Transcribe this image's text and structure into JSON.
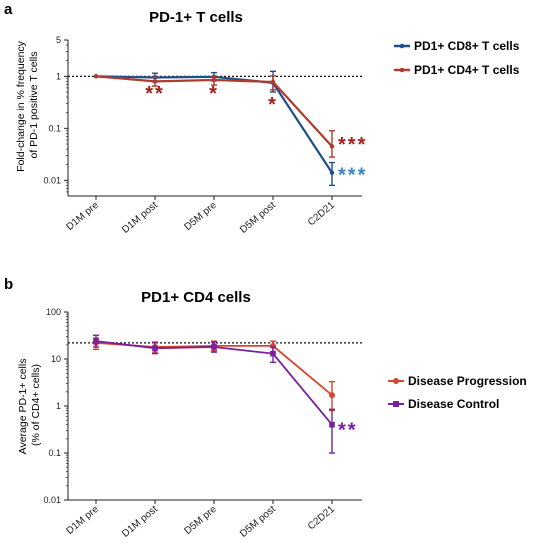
{
  "panels": [
    {
      "letter": "a",
      "chart_data": {
        "type": "line",
        "title": "PD-1+ T cells",
        "ylabel": "Fold-change in % frequency of PD-1 positive T cells",
        "ylabel_lines": [
          "Fold-change in % frequency",
          "of PD-1 positive T cells"
        ],
        "xlabel": "",
        "categories": [
          "D1M pre",
          "D1M post",
          "D5M pre",
          "D5M post",
          "C2D21"
        ],
        "y_scale": "log",
        "ylim": [
          0.005,
          5
        ],
        "y_ticks": [
          0.01,
          0.1,
          1,
          5
        ],
        "y_tick_labels": [
          "0.01",
          "0.1",
          "1",
          "5"
        ],
        "reference_line": 1,
        "legend_position": "right",
        "series": [
          {
            "name": "PD1+ CD8+ T cells",
            "color": "#1f4e8c",
            "values": [
              1,
              0.95,
              0.98,
              0.75,
              0.014
            ],
            "err_low": [
              1,
              0.78,
              0.82,
              0.5,
              0.008
            ],
            "err_high": [
              1,
              1.15,
              1.18,
              1.25,
              0.022
            ]
          },
          {
            "name": "PD1+ CD4+ T cells",
            "color": "#b03a2e",
            "values": [
              1,
              0.8,
              0.85,
              0.78,
              0.045
            ],
            "err_low": [
              1,
              0.65,
              0.68,
              0.55,
              0.028
            ],
            "err_high": [
              1,
              0.97,
              1.0,
              1.02,
              0.09
            ]
          }
        ],
        "annotations": [
          {
            "text": "**",
            "category": "D1M post",
            "y": 0.52,
            "color": "#a31f1f"
          },
          {
            "text": "*",
            "category": "D5M pre",
            "y": 0.52,
            "color": "#a31f1f"
          },
          {
            "text": "*",
            "category": "D5M post",
            "y": 0.32,
            "color": "#a31f1f"
          },
          {
            "text": "***",
            "category": "C2D21",
            "y": 0.055,
            "color": "#a31f1f"
          },
          {
            "text": "***",
            "category": "C2D21",
            "y": 0.014,
            "color": "#3d86c6"
          }
        ]
      }
    },
    {
      "letter": "b",
      "chart_data": {
        "type": "line",
        "title": "PD1+ CD4 cells",
        "ylabel": "Average PD-1+ cells (% of CD4+ cells)",
        "ylabel_lines": [
          "Average PD-1+ cells",
          "(% of CD4+ cells)"
        ],
        "xlabel": "",
        "categories": [
          "D1M pre",
          "D1M post",
          "D5M pre",
          "D5M post",
          "C2D21"
        ],
        "y_scale": "log",
        "ylim": [
          0.01,
          100
        ],
        "y_ticks": [
          0.01,
          0.1,
          1,
          10,
          100
        ],
        "y_tick_labels": [
          "0.01",
          "0.1",
          "1",
          "10",
          "100"
        ],
        "reference_line": 22,
        "legend_position": "right",
        "series": [
          {
            "name": "Disease Progression",
            "color": "#d9452f",
            "values": [
              22,
              18,
              19,
              19,
              1.7
            ],
            "err_low": [
              16,
              14,
              15,
              14,
              0.8
            ],
            "err_high": [
              28,
              23,
              24,
              24,
              3.3
            ]
          },
          {
            "name": "Disease Control",
            "color": "#7a1fa2",
            "values": [
              24,
              17,
              18,
              13,
              0.4
            ],
            "err_low": [
              18,
              13,
              14,
              8.5,
              0.1
            ],
            "err_high": [
              32,
              22,
              23,
              18,
              0.85
            ]
          }
        ],
        "annotations": [
          {
            "text": "**",
            "category": "C2D21",
            "y": 0.35,
            "color": "#7a1fa2"
          }
        ]
      }
    }
  ]
}
